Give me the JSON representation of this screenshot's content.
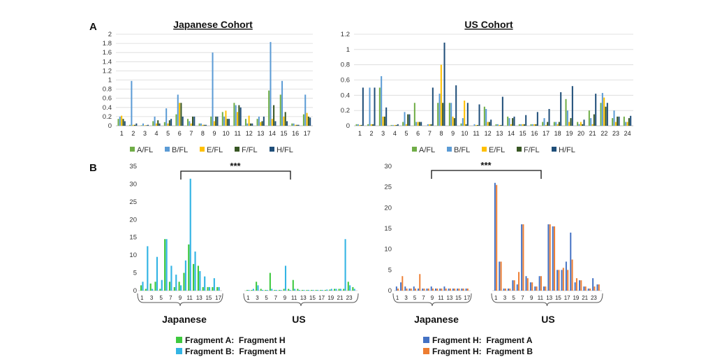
{
  "labels": {
    "panel_a": "A",
    "panel_b": "B"
  },
  "significance": "***",
  "colors": {
    "A/FL": "#70AD47",
    "B/FL": "#5B9BD5",
    "E/FL": "#FFC000",
    "F/FL": "#375623",
    "H/FL": "#1F4E79",
    "frag_a_h": "#3EC93E",
    "frag_b_h": "#33B4E4",
    "frag_h_a": "#4472C4",
    "frag_h_b": "#ED7D31"
  },
  "chart_data": [
    {
      "type": "bar",
      "title": "Japanese Cohort",
      "categories": [
        "1",
        "2",
        "3",
        "4",
        "5",
        "6",
        "7",
        "8",
        "9",
        "10",
        "11",
        "12",
        "13",
        "14",
        "15",
        "16",
        "17"
      ],
      "ylim": [
        0,
        2
      ],
      "yticks": [
        "0",
        "0.2",
        "0.4",
        "0.6",
        "0.8",
        "1",
        "1.2",
        "1.4",
        "1.6",
        "1.8",
        "2"
      ],
      "grid": true,
      "legend_position": "bottom",
      "series": [
        {
          "name": "A/FL",
          "values": [
            0.15,
            0.02,
            0.01,
            0.1,
            0.08,
            0.25,
            0.15,
            0.05,
            0.2,
            0.3,
            0.5,
            0.15,
            0.15,
            0.77,
            0.68,
            0.05,
            0.25
          ]
        },
        {
          "name": "B/FL",
          "values": [
            0.2,
            0.98,
            0.05,
            0.2,
            0.38,
            0.68,
            0.1,
            0.05,
            1.6,
            0.2,
            0.45,
            0.05,
            0.2,
            1.83,
            0.98,
            0.05,
            0.68
          ]
        },
        {
          "name": "E/FL",
          "values": [
            0.22,
            0.02,
            0.01,
            0.05,
            0.05,
            0.5,
            0.05,
            0.02,
            0.1,
            0.33,
            0.3,
            0.22,
            0.08,
            0.15,
            0.2,
            0.02,
            0.28
          ]
        },
        {
          "name": "F/FL",
          "values": [
            0.15,
            0.02,
            0.01,
            0.12,
            0.12,
            0.5,
            0.2,
            0.02,
            0.2,
            0.15,
            0.45,
            0.05,
            0.1,
            0.45,
            0.3,
            0.02,
            0.2
          ]
        },
        {
          "name": "H/FL",
          "values": [
            0.1,
            0.05,
            0.02,
            0.05,
            0.15,
            0.2,
            0.2,
            0.02,
            0.2,
            0.15,
            0.4,
            0.05,
            0.2,
            0.1,
            0.1,
            0.02,
            0.18
          ]
        }
      ]
    },
    {
      "type": "bar",
      "title": "US Cohort",
      "categories": [
        "1",
        "2",
        "3",
        "4",
        "5",
        "6",
        "7",
        "8",
        "9",
        "10",
        "11",
        "12",
        "13",
        "14",
        "15",
        "16",
        "17",
        "18",
        "19",
        "20",
        "21",
        "22",
        "23",
        "24"
      ],
      "ylim": [
        0,
        1.2
      ],
      "yticks": [
        "0",
        "0.2",
        "0.4",
        "0.6",
        "0.8",
        "1",
        "1.2"
      ],
      "grid": true,
      "legend_position": "bottom",
      "series": [
        {
          "name": "A/FL",
          "values": [
            0.02,
            0.02,
            0.5,
            0.01,
            0.05,
            0.3,
            0.0,
            0.3,
            0.3,
            0.03,
            0.0,
            0.25,
            0.02,
            0.12,
            0.02,
            0.02,
            0.05,
            0.05,
            0.35,
            0.05,
            0.2,
            0.3,
            0.1,
            0.12
          ]
        },
        {
          "name": "B/FL",
          "values": [
            0.02,
            0.5,
            0.65,
            0.01,
            0.18,
            0.05,
            0.02,
            0.42,
            0.3,
            0.1,
            0.02,
            0.22,
            0.02,
            0.1,
            0.02,
            0.02,
            0.1,
            0.05,
            0.2,
            0.02,
            0.1,
            0.43,
            0.2,
            0.05
          ]
        },
        {
          "name": "E/FL",
          "values": [
            0.01,
            0.02,
            0.12,
            0.01,
            0.02,
            0.05,
            0.02,
            0.8,
            0.12,
            0.33,
            0.01,
            0.05,
            0.01,
            0.02,
            0.02,
            0.02,
            0.01,
            0.02,
            0.05,
            0.05,
            0.02,
            0.37,
            0.05,
            0.05
          ]
        },
        {
          "name": "F/FL",
          "values": [
            0.01,
            0.02,
            0.12,
            0.01,
            0.15,
            0.05,
            0.02,
            0.3,
            0.1,
            0.02,
            0.01,
            0.05,
            0.01,
            0.1,
            0.02,
            0.02,
            0.05,
            0.05,
            0.1,
            0.02,
            0.15,
            0.25,
            0.12,
            0.1
          ]
        },
        {
          "name": "H/FL",
          "values": [
            0.5,
            0.5,
            0.24,
            0.02,
            0.15,
            0.05,
            0.5,
            1.09,
            0.53,
            0.3,
            0.28,
            0.08,
            0.38,
            0.12,
            0.14,
            0.18,
            0.22,
            0.44,
            0.52,
            0.08,
            0.42,
            0.3,
            0.12,
            0.13
          ]
        }
      ]
    },
    {
      "type": "bar",
      "ylim": [
        0,
        35
      ],
      "yticks": [
        "0",
        "5",
        "10",
        "15",
        "20",
        "25",
        "30",
        "35"
      ],
      "groups": [
        "Japanese",
        "US"
      ],
      "categories_japanese": [
        "1",
        "2",
        "3",
        "4",
        "5",
        "6",
        "7",
        "8",
        "9",
        "10",
        "11",
        "12",
        "13",
        "14",
        "15",
        "16",
        "17"
      ],
      "categories_us": [
        "1",
        "2",
        "3",
        "4",
        "5",
        "6",
        "7",
        "8",
        "9",
        "10",
        "11",
        "12",
        "13",
        "14",
        "15",
        "16",
        "17",
        "18",
        "19",
        "20",
        "21",
        "22",
        "23",
        "24"
      ],
      "tick_labels_japanese": [
        "1",
        "3",
        "5",
        "7",
        "9",
        "11",
        "13",
        "15",
        "17"
      ],
      "tick_labels_us": [
        "1",
        "3",
        "5",
        "7",
        "9",
        "11",
        "13",
        "15",
        "17",
        "19",
        "21",
        "23"
      ],
      "series": [
        {
          "name": "Fragment A:  Fragment H",
          "japanese": [
            1.5,
            0.5,
            2.0,
            2.5,
            0.5,
            14.5,
            2.5,
            1.0,
            2.5,
            5.0,
            13.0,
            7.5,
            7.0,
            1.0,
            1.0,
            1.0,
            1.0
          ],
          "us": [
            0.2,
            0.2,
            2.5,
            0.5,
            0.2,
            5.0,
            0.2,
            0.2,
            0.5,
            0.5,
            3.0,
            0.5,
            0.2,
            0.2,
            0.2,
            0.2,
            0.2,
            0.2,
            0.3,
            0.5,
            0.5,
            0.5,
            2.5,
            1.0
          ]
        },
        {
          "name": "Fragment B:  Fragment H",
          "japanese": [
            2.5,
            12.5,
            0.5,
            9.5,
            3.0,
            14.5,
            7.0,
            4.5,
            1.5,
            8.5,
            31.5,
            11.0,
            5.5,
            4.0,
            1.0,
            3.5,
            1.0
          ],
          "us": [
            0.2,
            0.5,
            1.5,
            0.2,
            0.2,
            0.5,
            0.2,
            0.2,
            7.0,
            0.2,
            0.5,
            0.2,
            0.2,
            0.2,
            0.2,
            0.2,
            0.2,
            0.3,
            0.5,
            0.5,
            0.5,
            14.5,
            1.5,
            0.5
          ]
        }
      ]
    },
    {
      "type": "bar",
      "ylim": [
        0,
        30
      ],
      "yticks": [
        "0",
        "5",
        "10",
        "15",
        "20",
        "25",
        "30"
      ],
      "groups": [
        "Japanese",
        "US"
      ],
      "categories_japanese": [
        "1",
        "2",
        "3",
        "4",
        "5",
        "6",
        "7",
        "8",
        "9",
        "10",
        "11",
        "12",
        "13",
        "14",
        "15",
        "16",
        "17"
      ],
      "categories_us": [
        "1",
        "2",
        "3",
        "4",
        "5",
        "6",
        "7",
        "8",
        "9",
        "10",
        "11",
        "12",
        "13",
        "14",
        "15",
        "16",
        "17",
        "18",
        "19",
        "20",
        "21",
        "22",
        "23",
        "24"
      ],
      "tick_labels_japanese": [
        "1",
        "3",
        "5",
        "7",
        "9",
        "11",
        "13",
        "15",
        "17"
      ],
      "tick_labels_us": [
        "1",
        "3",
        "5",
        "7",
        "9",
        "11",
        "13",
        "15",
        "17",
        "19",
        "21",
        "23"
      ],
      "series": [
        {
          "name": "Fragment H:  Fragment A",
          "japanese": [
            1.0,
            2.0,
            1.0,
            0.5,
            1.0,
            0.5,
            0.5,
            0.5,
            1.0,
            0.5,
            0.5,
            1.0,
            0.5,
            0.5,
            0.5,
            0.5,
            0.5
          ],
          "us": [
            26.0,
            7.0,
            0.5,
            0.5,
            2.5,
            1.5,
            16.0,
            3.5,
            2.0,
            1.0,
            3.5,
            1.0,
            16.0,
            15.5,
            5.0,
            5.0,
            7.0,
            14.0,
            2.0,
            2.5,
            1.0,
            0.5,
            3.0,
            1.5
          ]
        },
        {
          "name": "Fragment H:  Fragment B",
          "japanese": [
            0.5,
            3.5,
            0.5,
            0.5,
            0.5,
            4.0,
            0.5,
            0.5,
            0.5,
            0.5,
            0.5,
            0.5,
            0.5,
            0.5,
            0.5,
            0.5,
            0.5
          ],
          "us": [
            25.5,
            7.0,
            0.5,
            0.5,
            2.5,
            4.5,
            16.0,
            3.0,
            2.0,
            1.0,
            3.5,
            1.0,
            16.0,
            15.5,
            5.0,
            5.5,
            5.0,
            7.5,
            3.0,
            2.5,
            1.0,
            0.5,
            1.0,
            1.5
          ]
        }
      ]
    }
  ]
}
